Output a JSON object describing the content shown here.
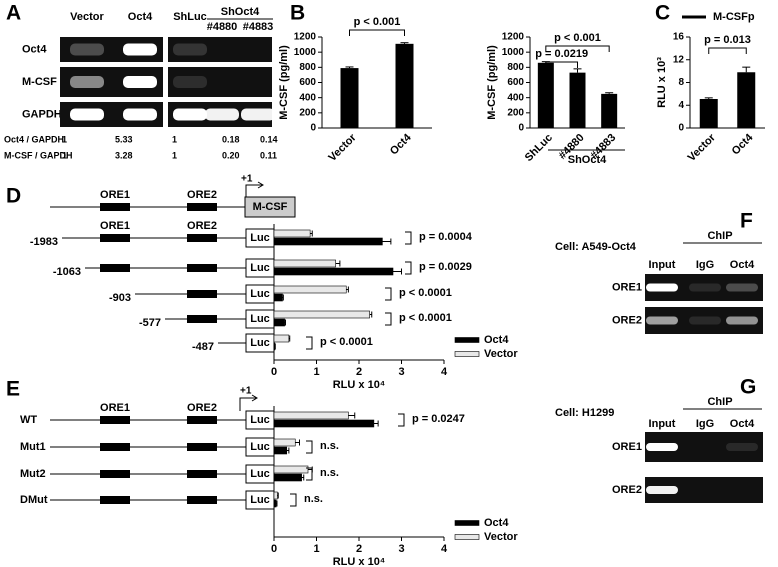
{
  "panel_labels": [
    "A",
    "B",
    "C",
    "D",
    "E",
    "F",
    "G"
  ],
  "gel_a": {
    "columns": [
      "Vector",
      "Oct4",
      "ShLuc",
      "#4880",
      "#4883"
    ],
    "group_label": "ShOct4",
    "rows": [
      "Oct4",
      "M-CSF",
      "GAPDH"
    ],
    "ratios": [
      {
        "label": "Oct4 / GAPDH",
        "values": [
          "1",
          "5.33",
          "1",
          "0.18",
          "0.14"
        ]
      },
      {
        "label": "M-CSF / GAPDH",
        "values": [
          "1",
          "3.28",
          "1",
          "0.20",
          "0.11"
        ]
      }
    ]
  },
  "gel_f": {
    "cell": "Cell: A549-Oct4",
    "group_label": "ChIP",
    "columns": [
      "Input",
      "IgG",
      "Oct4"
    ],
    "rows": [
      "ORE1",
      "ORE2"
    ]
  },
  "gel_g": {
    "cell": "Cell: H1299",
    "group_label": "ChIP",
    "columns": [
      "Input",
      "IgG",
      "Oct4"
    ],
    "rows": [
      "ORE1",
      "ORE2"
    ]
  },
  "diagram": {
    "elements": [
      "ORE1",
      "ORE2"
    ],
    "tss": "+1",
    "gene": "M-CSF",
    "reporter": "Luc"
  },
  "chart_data": [
    {
      "type": "bar",
      "y_label": "M-CSF (pg/ml)",
      "categories": [
        "Vector",
        "Oct4"
      ],
      "values": [
        790,
        1110
      ],
      "errors": [
        15,
        15
      ],
      "color": "#000000",
      "ylim": [
        0,
        1200
      ],
      "yticks": [
        0,
        200,
        400,
        600,
        800,
        1000,
        1200
      ],
      "annotations": [
        "p < 0.001"
      ]
    },
    {
      "type": "bar",
      "y_label": "M-CSF (pg/ml)",
      "categories": [
        "ShLuc",
        "#4880",
        "#4883"
      ],
      "group_label": "ShOct4",
      "values": [
        860,
        730,
        450
      ],
      "errors": [
        15,
        50,
        15
      ],
      "color": "#000000",
      "ylim": [
        0,
        1200
      ],
      "yticks": [
        0,
        200,
        400,
        600,
        800,
        1000,
        1200
      ],
      "annotations": [
        "p = 0.0219",
        "p < 0.001"
      ]
    },
    {
      "type": "bar",
      "y_label": "RLU x 10³",
      "categories": [
        "Vector",
        "Oct4"
      ],
      "series": [
        {
          "name": "M-CSFp",
          "color": "#000000",
          "values": [
            5.1,
            9.8
          ],
          "errors": [
            0.2,
            0.9
          ]
        }
      ],
      "ylim": [
        0,
        16
      ],
      "yticks": [
        0,
        4,
        8,
        12,
        16
      ],
      "annotations": [
        "p = 0.013"
      ]
    },
    {
      "type": "hbar",
      "x_label": "RLU x 10⁴",
      "categories": [
        "-1983",
        "-1063",
        "-903",
        "-577",
        "-487"
      ],
      "series": [
        {
          "name": "Oct4",
          "color": "#000000",
          "values": [
            2.55,
            2.8,
            0.2,
            0.25,
            0.02
          ],
          "errors": [
            0.2,
            0.2,
            0.02,
            0.02,
            0.01
          ]
        },
        {
          "name": "Vector",
          "color": "#e8e8e8",
          "values": [
            0.85,
            1.45,
            1.7,
            2.25,
            0.35
          ],
          "errors": [
            0.05,
            0.1,
            0.05,
            0.05,
            0.02
          ]
        }
      ],
      "xlim": [
        0,
        4
      ],
      "xticks": [
        0,
        1,
        2,
        3,
        4
      ],
      "annotations": [
        "p = 0.0004",
        "p = 0.0029",
        "p < 0.0001",
        "p < 0.0001",
        "p < 0.0001"
      ]
    },
    {
      "type": "hbar",
      "x_label": "RLU x 10⁴",
      "categories": [
        "WT",
        "Mut1",
        "Mut2",
        "DMut"
      ],
      "series": [
        {
          "name": "Oct4",
          "color": "#000000",
          "values": [
            2.35,
            0.3,
            0.65,
            0.05
          ],
          "errors": [
            0.1,
            0.05,
            0.05,
            0.02
          ]
        },
        {
          "name": "Vector",
          "color": "#e8e8e8",
          "values": [
            1.75,
            0.5,
            0.8,
            0.08
          ],
          "errors": [
            0.15,
            0.1,
            0.1,
            0.02
          ]
        }
      ],
      "xlim": [
        0,
        4
      ],
      "xticks": [
        0,
        1,
        2,
        3,
        4
      ],
      "annotations": [
        "p = 0.0247",
        "n.s.",
        "n.s.",
        "n.s."
      ]
    }
  ]
}
